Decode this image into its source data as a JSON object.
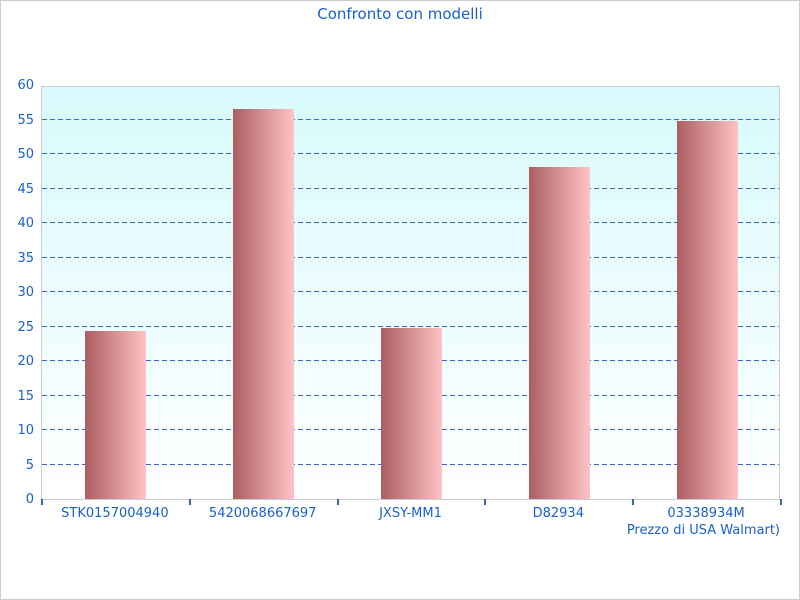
{
  "title": "Confronto con modelli",
  "chart_data": {
    "type": "bar",
    "title": "Confronto con modelli",
    "categories": [
      "STK0157004940",
      "5420068667697",
      "JXSY-MM1",
      "D82934",
      "03338934M"
    ],
    "values": [
      24.4,
      56.5,
      24.8,
      48.1,
      54.8
    ],
    "xlabel": "Prezzo di USA Walmart)",
    "ylabel": "",
    "ylim": [
      0,
      60
    ],
    "ytick_step": 5,
    "grid": "horizontal-dashed",
    "legend": "none",
    "colors": {
      "text": "#1a5fd0",
      "gridline": "#3a66cc",
      "border": "#c9cdd1",
      "plot_bg_top": "#d8fafc",
      "plot_bg_bottom": "#ffffff",
      "bar_gradient_left": "#ac5e62",
      "bar_gradient_right": "#ffc3c5"
    }
  }
}
